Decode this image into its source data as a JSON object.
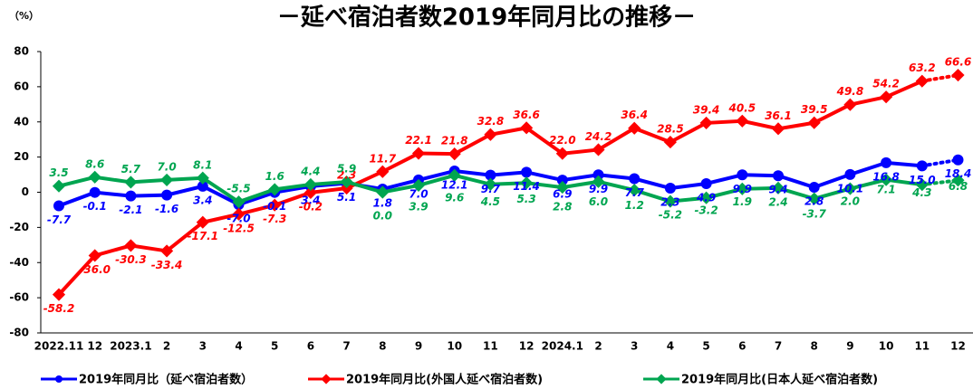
{
  "chart_data": {
    "type": "line",
    "title": "－延べ宿泊者数2019年同月比の推移－",
    "y_label": "（%）",
    "categories": [
      "2022.11",
      "12",
      "2023.1",
      "2",
      "3",
      "4",
      "5",
      "6",
      "7",
      "8",
      "9",
      "10",
      "11",
      "12",
      "2024.1",
      "2",
      "3",
      "4",
      "5",
      "6",
      "7",
      "8",
      "9",
      "10",
      "11",
      "12"
    ],
    "series": [
      {
        "name": "2019年同月比（延べ宿泊者数）",
        "color": "#0000ff",
        "values": [
          -7.7,
          -0.1,
          -2.1,
          -1.6,
          3.4,
          -7.0,
          -0.1,
          3.4,
          5.1,
          1.8,
          7.0,
          12.1,
          9.7,
          11.4,
          6.9,
          9.9,
          7.7,
          2.3,
          4.9,
          9.9,
          9.4,
          2.8,
          10.1,
          16.8,
          15.0,
          18.4
        ],
        "value_labels": [
          "-7.7",
          "-0.1",
          "-2.1",
          "-1.6",
          "3.4",
          "-7.0",
          "-0.1",
          "3.4",
          "5.1",
          "1.8",
          "7.0",
          "12.1",
          "9.7",
          "11.4",
          "6.9",
          "9.9",
          "7.7",
          "2.3",
          "4.9",
          "9.9",
          "9.4",
          "2.8",
          "10.1",
          "16.8",
          "15.0",
          "18.4"
        ]
      },
      {
        "name": "2019年同月比(外国人延べ宿泊者数)",
        "color": "#ff0000",
        "values": [
          -58.2,
          -36.0,
          -30.3,
          -33.4,
          -17.1,
          -12.5,
          -7.3,
          -0.2,
          2.3,
          11.7,
          22.1,
          21.8,
          32.8,
          36.6,
          22.0,
          24.2,
          36.4,
          28.5,
          39.4,
          40.5,
          36.1,
          39.5,
          49.8,
          54.2,
          63.2,
          66.6
        ],
        "value_labels": [
          "-58.2",
          "-36.0",
          "-30.3",
          "-33.4",
          "-17.1",
          "-12.5",
          "-7.3",
          "-0.2",
          "2.3",
          "11.7",
          "22.1",
          "21.8",
          "32.8",
          "36.6",
          "22.0",
          "24.2",
          "36.4",
          "28.5",
          "39.4",
          "40.5",
          "36.1",
          "39.5",
          "49.8",
          "54.2",
          "63.2",
          "66.6"
        ]
      },
      {
        "name": "2019年同月比(日本人延べ宿泊者数)",
        "color": "#00a550",
        "values": [
          3.5,
          8.6,
          5.7,
          7.0,
          8.1,
          -5.5,
          1.6,
          4.4,
          5.9,
          0.0,
          3.9,
          9.6,
          4.5,
          5.3,
          2.8,
          6.0,
          1.2,
          -5.2,
          -3.2,
          1.9,
          2.4,
          -3.7,
          2.0,
          7.1,
          4.3,
          6.8
        ],
        "value_labels": [
          "3.5",
          "8.6",
          "5.7",
          "7.0",
          "8.1",
          "-5.5",
          "1.6",
          "4.4",
          "5.9",
          "0.0",
          "3.9",
          "9.6",
          "4.5",
          "5.3",
          "2.8",
          "6.0",
          "1.2",
          "-5.2",
          "-3.2",
          "1.9",
          "2.4",
          "-3.7",
          "2.0",
          "7.1",
          "4.3",
          "6.8"
        ]
      }
    ],
    "ylim": [
      -80,
      80
    ],
    "yticks": [
      -80,
      -60,
      -40,
      -20,
      0,
      20,
      40,
      60,
      80
    ],
    "grid": false,
    "legend": "bottom",
    "dotted_last_segment": true
  }
}
